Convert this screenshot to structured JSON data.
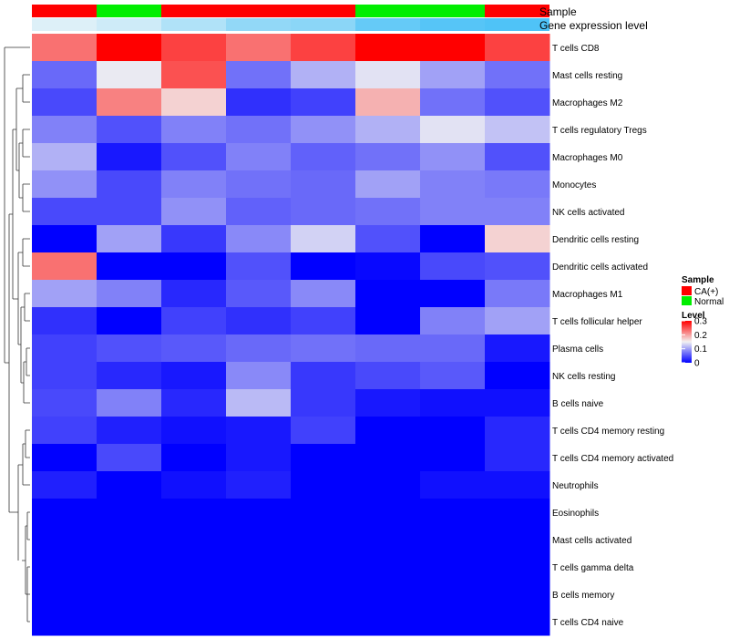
{
  "chart_data": {
    "type": "heatmap",
    "title": "",
    "annotation_rows": [
      {
        "label": "Sample",
        "values": [
          "CA(+)",
          "Normal",
          "CA(+)",
          "CA(+)",
          "CA(+)",
          "Normal",
          "Normal",
          "CA(+)"
        ]
      },
      {
        "label": "Gene expression level",
        "values": [
          0.05,
          0.15,
          0.35,
          0.55,
          0.6,
          0.85,
          0.95,
          1.0
        ]
      }
    ],
    "annotation_colors": {
      "Sample": {
        "CA(+)": "#ff0000",
        "Normal": "#00ee00"
      },
      "Gene expression level": {
        "low": "#e4f2f8",
        "high": "#4fc3f7"
      }
    },
    "rows": [
      "T cells CD8",
      "Mast cells resting",
      "Macrophages M2",
      "T cells regulatory  Tregs",
      "Macrophages M0",
      "Monocytes",
      "NK cells activated",
      "Dendritic cells resting",
      "Dendritic cells activated",
      "Macrophages M1",
      "T cells follicular helper",
      "Plasma cells",
      "NK cells resting",
      "B cells naive",
      "T cells CD4 memory resting",
      "T cells CD4 memory activated",
      "Neutrophils",
      "Eosinophils",
      "Mast cells activated",
      "T cells gamma delta",
      "B cells memory",
      "T cells CD4 naive"
    ],
    "values": [
      [
        0.23,
        0.3,
        0.26,
        0.23,
        0.26,
        0.3,
        0.3,
        0.26
      ],
      [
        0.065,
        0.145,
        0.25,
        0.07,
        0.11,
        0.14,
        0.1,
        0.07
      ],
      [
        0.045,
        0.22,
        0.17,
        0.03,
        0.04,
        0.19,
        0.07,
        0.05
      ],
      [
        0.08,
        0.05,
        0.08,
        0.07,
        0.09,
        0.11,
        0.14,
        0.12
      ],
      [
        0.11,
        0.015,
        0.05,
        0.08,
        0.06,
        0.07,
        0.09,
        0.05
      ],
      [
        0.09,
        0.045,
        0.08,
        0.07,
        0.065,
        0.1,
        0.08,
        0.075
      ],
      [
        0.045,
        0.045,
        0.09,
        0.06,
        0.065,
        0.07,
        0.08,
        0.08
      ],
      [
        0.0,
        0.1,
        0.035,
        0.085,
        0.13,
        0.05,
        0.0,
        0.17
      ],
      [
        0.23,
        0.0,
        0.0,
        0.05,
        0.0,
        0.005,
        0.045,
        0.05
      ],
      [
        0.1,
        0.08,
        0.025,
        0.055,
        0.085,
        0.0,
        0.0,
        0.075
      ],
      [
        0.03,
        0.0,
        0.04,
        0.03,
        0.04,
        0.0,
        0.08,
        0.1
      ],
      [
        0.04,
        0.05,
        0.055,
        0.065,
        0.07,
        0.065,
        0.065,
        0.015
      ],
      [
        0.04,
        0.025,
        0.015,
        0.085,
        0.035,
        0.045,
        0.055,
        0.0
      ],
      [
        0.045,
        0.08,
        0.025,
        0.115,
        0.035,
        0.015,
        0.01,
        0.01
      ],
      [
        0.04,
        0.02,
        0.01,
        0.015,
        0.04,
        0.0,
        0.0,
        0.025
      ],
      [
        0.0,
        0.045,
        0.0,
        0.015,
        0.0,
        0.0,
        0.0,
        0.025
      ],
      [
        0.02,
        0.0,
        0.01,
        0.02,
        0.0,
        0.0,
        0.01,
        0.01
      ],
      [
        0.0,
        0.0,
        0.0,
        0.0,
        0.0,
        0.0,
        0.0,
        0.0
      ],
      [
        0.0,
        0.0,
        0.0,
        0.0,
        0.0,
        0.0,
        0.0,
        0.0
      ],
      [
        0.0,
        0.0,
        0.0,
        0.0,
        0.0,
        0.0,
        0.0,
        0.0
      ],
      [
        0.0,
        0.0,
        0.0,
        0.0,
        0.0,
        0.0,
        0.0,
        0.0
      ],
      [
        0.0,
        0.0,
        0.0,
        0.0,
        0.0,
        0.0,
        0.0,
        0.0
      ]
    ],
    "color_scale": {
      "min": 0,
      "mid": 0.15,
      "max": 0.3,
      "low_color": "#0000ff",
      "mid_color": "#f2f2f2",
      "high_color": "#ff0000"
    },
    "legend": {
      "position": "right",
      "sample_title": "Sample",
      "sample_entries": [
        "CA(+)",
        "Normal"
      ],
      "level_title": "Level",
      "level_ticks": [
        "0.3",
        "0.2",
        "0.1",
        "0"
      ],
      "level_tick_values": [
        0.3,
        0.2,
        0.1,
        0
      ]
    },
    "row_dendrogram": true
  }
}
